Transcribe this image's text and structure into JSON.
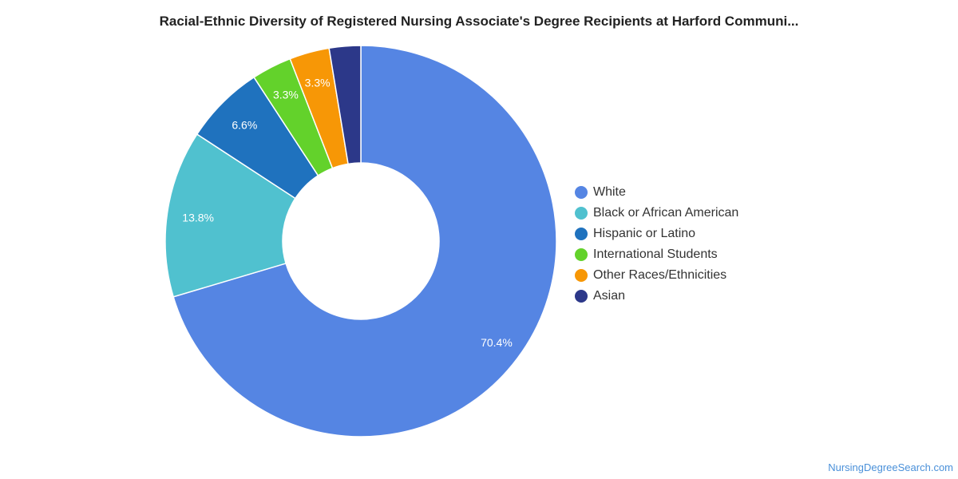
{
  "chart_data": {
    "type": "pie",
    "variant": "donut",
    "title": "Racial-Ethnic Diversity of Registered Nursing Associate's Degree Recipients at Harford Communi...",
    "slices": [
      {
        "label": "White",
        "value": 70.4,
        "display": "70.4%",
        "color": "#5585e3"
      },
      {
        "label": "Black or African American",
        "value": 13.8,
        "display": "13.8%",
        "color": "#50c1cf"
      },
      {
        "label": "Hispanic or Latino",
        "value": 6.6,
        "display": "6.6%",
        "color": "#1f72be"
      },
      {
        "label": "International Students",
        "value": 3.3,
        "display": "3.3%",
        "color": "#63d22b"
      },
      {
        "label": "Other Races/Ethnicities",
        "value": 3.3,
        "display": "3.3%",
        "color": "#f79706"
      },
      {
        "label": "Asian",
        "value": 2.6,
        "display": "",
        "color": "#2c3889"
      }
    ],
    "legend_placement": "right"
  },
  "footer": {
    "source_text": "NursingDegreeSearch.com"
  }
}
